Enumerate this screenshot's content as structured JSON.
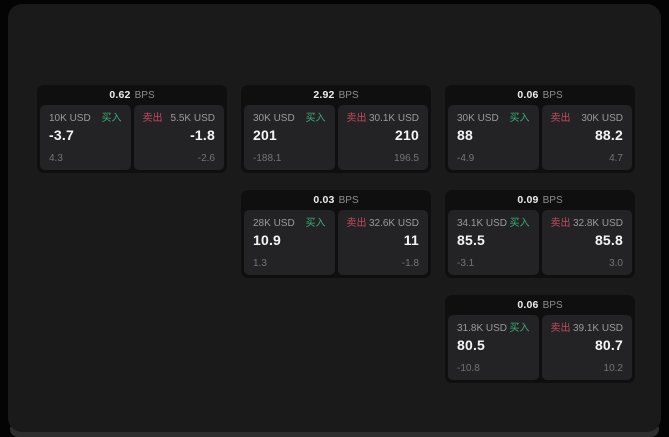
{
  "colors": {
    "buy_green": "#3bac77",
    "sell_red": "#c24a63",
    "value_white": "#f4f4f4",
    "label_gray": "#9b9b9b",
    "sub_gray": "#747474",
    "bps_gray": "#8d8d8d",
    "panel_bg": "#1a1a1b",
    "card_bg": "#0f0f10",
    "pane_bg": "#232325"
  },
  "labels": {
    "bps": "BPS",
    "buy": "买入",
    "sell": "卖出"
  },
  "cards": [
    {
      "bps": "0.62",
      "buy": {
        "amount": "10K USD",
        "value": "-3.7",
        "sub": "4.3"
      },
      "sell": {
        "amount": "5.5K USD",
        "value": "-1.8",
        "sub": "-2.6"
      }
    },
    {
      "bps": "2.92",
      "buy": {
        "amount": "30K USD",
        "value": "201",
        "sub": "-188.1"
      },
      "sell": {
        "amount": "30.1K USD",
        "value": "210",
        "sub": "196.5"
      }
    },
    {
      "bps": "0.06",
      "buy": {
        "amount": "30K USD",
        "value": "88",
        "sub": "-4.9"
      },
      "sell": {
        "amount": "30K USD",
        "value": "88.2",
        "sub": "4.7"
      }
    },
    {
      "bps": "0.03",
      "buy": {
        "amount": "28K USD",
        "value": "10.9",
        "sub": "1.3"
      },
      "sell": {
        "amount": "32.6K USD",
        "value": "11",
        "sub": "-1.8"
      }
    },
    {
      "bps": "0.09",
      "buy": {
        "amount": "34.1K USD",
        "value": "85.5",
        "sub": "-3.1"
      },
      "sell": {
        "amount": "32.8K USD",
        "value": "85.8",
        "sub": "3.0"
      }
    },
    {
      "bps": "0.06",
      "buy": {
        "amount": "31.8K USD",
        "value": "80.5",
        "sub": "-10.8"
      },
      "sell": {
        "amount": "39.1K USD",
        "value": "80.7",
        "sub": "10.2"
      }
    }
  ]
}
